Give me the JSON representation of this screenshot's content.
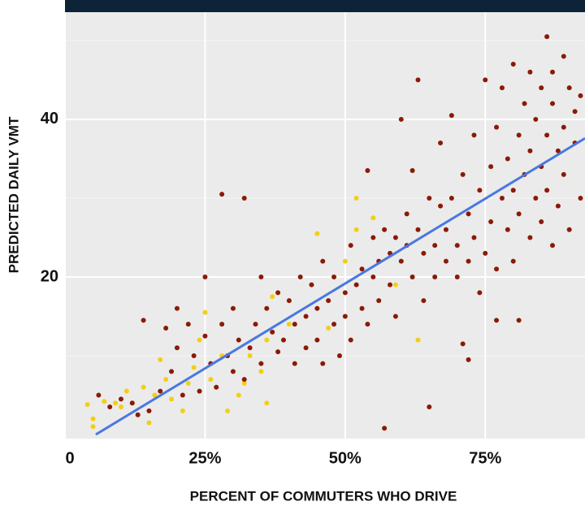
{
  "chart_data": {
    "type": "scatter",
    "xlabel": "PERCENT OF COMMUTERS WHO DRIVE",
    "ylabel": "PREDICTED DAILY VMT",
    "xlim": [
      0,
      92.8
    ],
    "ylim": [
      0,
      53.6
    ],
    "xticks": [
      0,
      {
        "value": 25,
        "label": "25%"
      },
      {
        "value": 50,
        "label": "50%"
      },
      {
        "value": 75,
        "label": "75%"
      }
    ],
    "yticks": [
      20,
      40
    ],
    "yminor": [
      10,
      30,
      50
    ],
    "grid": true,
    "series": [
      {
        "color": "#f2cf14",
        "x": [
          4,
          5,
          5,
          7,
          9,
          10,
          11,
          12,
          14,
          15,
          16,
          17,
          18,
          19,
          21,
          22,
          23,
          24,
          25,
          26,
          28,
          29,
          31,
          32,
          33,
          35,
          36,
          36,
          37,
          40,
          45,
          47,
          50,
          52,
          52,
          55,
          59,
          63
        ],
        "values": [
          3.8,
          2,
          1,
          4.2,
          4,
          3.5,
          5.5,
          4,
          6,
          1.5,
          5,
          9.5,
          7,
          4.5,
          3,
          6.5,
          8.5,
          12,
          15.5,
          7,
          10,
          3,
          5,
          6.5,
          10,
          8,
          12,
          4,
          17.5,
          14,
          25.5,
          13.5,
          22,
          30,
          26,
          27.5,
          19,
          12
        ]
      },
      {
        "color": "#8b1a04",
        "x": [
          6,
          8,
          10,
          12,
          13,
          14,
          15,
          17,
          18,
          19,
          20,
          20,
          21,
          22,
          23,
          24,
          25,
          25,
          26,
          27,
          28,
          28,
          29,
          30,
          30,
          31,
          32,
          32,
          33,
          34,
          35,
          35,
          36,
          37,
          38,
          38,
          39,
          40,
          41,
          41,
          42,
          43,
          43,
          44,
          45,
          45,
          46,
          46,
          47,
          48,
          48,
          49,
          50,
          50,
          51,
          51,
          52,
          53,
          53,
          54,
          54,
          55,
          55,
          56,
          56,
          57,
          57,
          58,
          58,
          59,
          59,
          60,
          60,
          61,
          61,
          62,
          62,
          63,
          63,
          64,
          64,
          65,
          65,
          66,
          66,
          67,
          67,
          68,
          68,
          69,
          69,
          70,
          70,
          71,
          71,
          72,
          72,
          72,
          73,
          73,
          74,
          74,
          75,
          75,
          76,
          76,
          77,
          77,
          77,
          78,
          78,
          79,
          79,
          80,
          80,
          80,
          81,
          81,
          81,
          82,
          82,
          83,
          83,
          83,
          84,
          84,
          85,
          85,
          85,
          86,
          86,
          86,
          87,
          87,
          87,
          88,
          88,
          89,
          89,
          89,
          90,
          90,
          91,
          91,
          92,
          92
        ],
        "values": [
          5,
          3.5,
          4.5,
          4,
          2.5,
          14.5,
          3,
          5.5,
          13.5,
          8,
          16,
          11,
          5,
          14,
          10,
          5.5,
          20,
          12.5,
          9,
          6,
          30.5,
          14,
          10,
          8,
          16,
          12,
          30,
          7,
          11,
          14,
          20,
          9,
          16,
          13,
          18,
          10.5,
          12,
          17,
          14,
          9,
          20,
          15,
          11,
          19,
          16,
          12,
          22,
          9,
          17,
          14,
          20,
          10,
          18,
          15,
          24,
          12,
          19,
          21,
          16,
          33.5,
          14,
          20,
          25,
          17,
          22,
          0.8,
          26,
          23,
          19,
          25,
          15,
          22,
          40,
          28,
          24,
          33.5,
          20,
          45,
          26,
          17,
          23,
          30,
          3.5,
          24,
          20,
          29,
          37,
          22,
          26,
          40.5,
          30,
          24,
          20,
          11.5,
          33,
          28,
          22,
          9.5,
          38,
          25,
          18,
          31,
          45,
          23,
          34,
          27,
          14.5,
          39,
          21,
          30,
          44,
          26,
          35,
          47,
          31,
          22,
          14.5,
          38,
          28,
          42,
          33,
          25,
          46,
          36,
          30,
          40,
          44,
          27,
          34,
          50.5,
          38,
          31,
          42,
          24,
          46,
          36,
          29,
          48,
          39,
          33,
          26,
          44,
          37,
          41,
          30,
          43
        ]
      }
    ],
    "trend": {
      "color": "#4a78e0",
      "x": [
        5.5,
        92.8
      ],
      "values": [
        0,
        37.6
      ]
    }
  }
}
